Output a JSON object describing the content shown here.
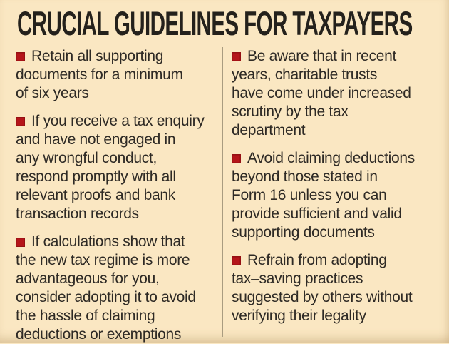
{
  "header": {
    "title": "CRUCIAL GUIDELINES FOR TAXPAYERS"
  },
  "colors": {
    "background": "#fae7c2",
    "title_text": "#24211c",
    "body_text": "#2e2a25",
    "bullet_red": "#b5151a",
    "divider": "#a99c80"
  },
  "icons": {
    "bullet": "red-square"
  },
  "columns": {
    "left": {
      "items": [
        {
          "lines": [
            "Retain all supporting",
            "documents for a minimum",
            "of six years"
          ]
        },
        {
          "lines": [
            "If you receive a tax enquiry",
            "and have not engaged in",
            "any wrongful conduct,",
            "respond promptly with all",
            "relevant proofs and bank",
            "transaction records"
          ]
        },
        {
          "lines": [
            "If calculations show that",
            "the new tax regime is more",
            "advantageous for you,",
            "consider adopting it to avoid",
            "the hassle of claiming",
            "deductions or exemptions"
          ]
        }
      ]
    },
    "right": {
      "items": [
        {
          "lines": [
            "Be aware that in recent",
            "years, charitable trusts",
            "have come under increased",
            "scrutiny by the tax",
            "department"
          ]
        },
        {
          "lines": [
            "Avoid claiming deductions",
            "beyond those stated in",
            "Form 16 unless you can",
            "provide sufficient and valid",
            "supporting documents"
          ]
        },
        {
          "lines": [
            "Refrain from adopting",
            "tax–saving practices",
            "suggested by others without",
            "verifying their legality"
          ]
        }
      ]
    }
  }
}
